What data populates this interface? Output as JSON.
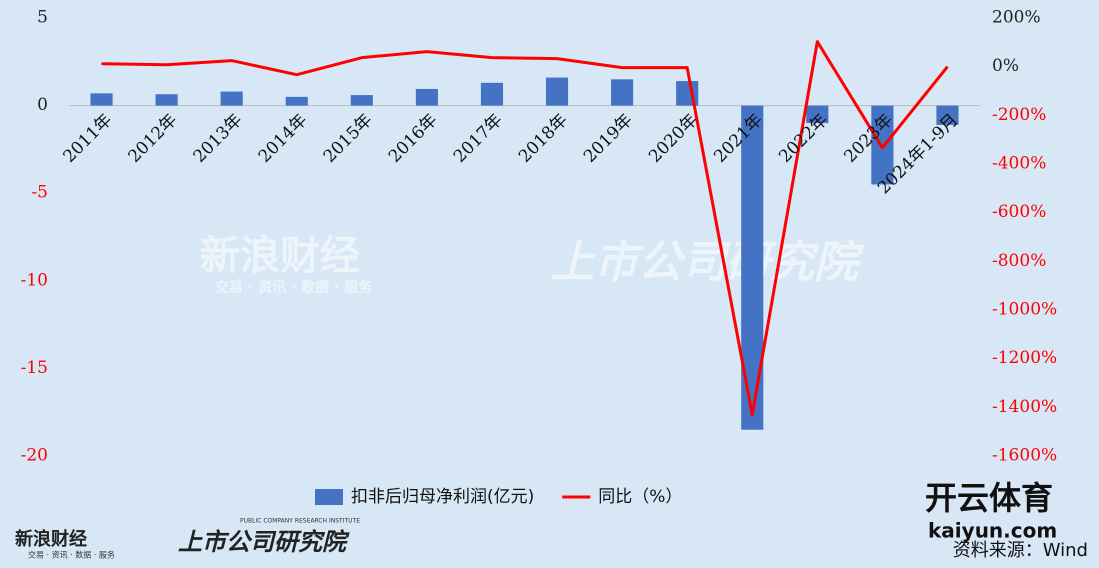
{
  "chart_data": {
    "type": "bar_line",
    "categories": [
      "2011年",
      "2012年",
      "2013年",
      "2014年",
      "2015年",
      "2016年",
      "2017年",
      "2018年",
      "2019年",
      "2020年",
      "2021年",
      "2022年",
      "2023年",
      "2024年1-9月"
    ],
    "series": [
      {
        "name": "扣非后归母净利润(亿元)",
        "color": "#4472c4",
        "type": "bar",
        "values": [
          0.7,
          0.65,
          0.8,
          0.5,
          0.6,
          0.95,
          1.3,
          1.6,
          1.5,
          1.4,
          -18.5,
          -1.0,
          -4.5,
          -1.1
        ]
      },
      {
        "name": "同比（%）",
        "color": "#ff0000",
        "type": "line",
        "axis": "y2",
        "values": [
          12,
          8,
          25,
          -33,
          37,
          62,
          37,
          33,
          -4,
          -4,
          -1430,
          103,
          -333,
          0
        ]
      }
    ],
    "ylim": [
      -20,
      5
    ],
    "yticks": [
      -20,
      -15,
      -10,
      -5,
      0,
      5
    ],
    "y2lim": [
      -1600,
      200
    ],
    "y2ticks": [
      {
        "value": -1600,
        "label": "-1600%"
      },
      {
        "value": -1400,
        "label": "-1400%"
      },
      {
        "value": -1200,
        "label": "-1200%"
      },
      {
        "value": -1000,
        "label": "-1000%"
      },
      {
        "value": -800,
        "label": "-800%"
      },
      {
        "value": -600,
        "label": "-600%"
      },
      {
        "value": -400,
        "label": "-400%"
      },
      {
        "value": -200,
        "label": "-200%"
      },
      {
        "value": 0,
        "label": "0%"
      },
      {
        "value": 200,
        "label": "200%"
      }
    ],
    "negative_color": "#ff0000",
    "legend": "bottom",
    "source": "资料来源：Wind"
  },
  "watermarks": {
    "sina": "新浪财经",
    "sina_sub": "交易 · 资讯 · 数据 · 服务",
    "institute": "上市公司研究院",
    "institute_sub": "PUBLIC COMPANY RESEARCH INSTITUTE",
    "kaiyun": "开云体育",
    "kaiyun_url": "kaiyun.com"
  }
}
